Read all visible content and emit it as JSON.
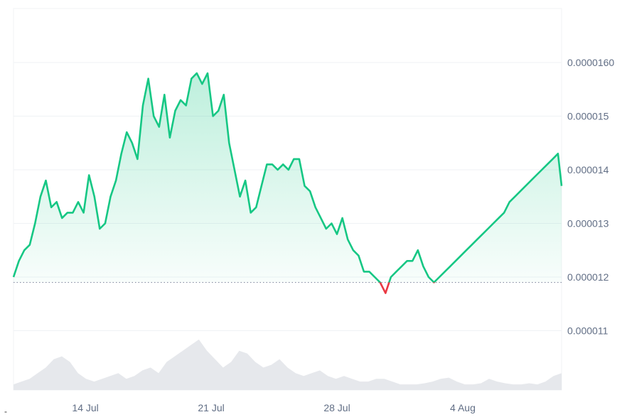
{
  "chart_data": {
    "type": "area",
    "title": "",
    "xlabel": "",
    "ylabel": "",
    "baseline": 1.19e-05,
    "ylim": [
      1.05e-05,
      1.7e-05
    ],
    "y_ticks": [
      {
        "value": 1.6e-05,
        "label": "0.0000160"
      },
      {
        "value": 1.5e-05,
        "label": "0.000015"
      },
      {
        "value": 1.4e-05,
        "label": "0.000014"
      },
      {
        "value": 1.3e-05,
        "label": "0.000013"
      },
      {
        "value": 1.2e-05,
        "label": "0.000012"
      },
      {
        "value": 1.1e-05,
        "label": "0.000011"
      }
    ],
    "x_ticks": [
      {
        "day": 14,
        "label": "14 Jul"
      },
      {
        "day": 21,
        "label": "21 Jul"
      },
      {
        "day": 28,
        "label": "28 Jul"
      },
      {
        "day": 35,
        "label": "4 Aug"
      }
    ],
    "grid": true,
    "colors": {
      "up": "#16c784",
      "down": "#ea3943",
      "volume": "#e6e8ec",
      "grid": "#eff2f5"
    },
    "series": [
      {
        "type": "line",
        "x": [
          10.0,
          10.3,
          10.6,
          10.9,
          11.2,
          11.5,
          11.8,
          12.1,
          12.4,
          12.7,
          13.0,
          13.3,
          13.6,
          13.9,
          14.2,
          14.5,
          14.8,
          15.1,
          15.4,
          15.7,
          16.0,
          16.3,
          16.6,
          16.9,
          17.2,
          17.5,
          17.8,
          18.1,
          18.4,
          18.7,
          19.0,
          19.3,
          19.6,
          19.9,
          20.2,
          20.5,
          20.8,
          21.1,
          21.4,
          21.7,
          22.0,
          22.3,
          22.6,
          22.9,
          23.2,
          23.5,
          23.8,
          24.1,
          24.4,
          24.7,
          25.0,
          25.3,
          25.6,
          25.9,
          26.2,
          26.5,
          26.8,
          27.1,
          27.4,
          27.7,
          28.0,
          28.3,
          28.6,
          28.9,
          29.2,
          29.5,
          29.8,
          30.1,
          30.4,
          30.7,
          31.0,
          31.3,
          31.6,
          31.9,
          32.2,
          32.5,
          32.8,
          33.1,
          33.4,
          33.7,
          34.0,
          34.3,
          34.6,
          34.9,
          35.2,
          35.5,
          35.8,
          36.1,
          36.4,
          36.7,
          37.0,
          37.3,
          37.6,
          37.9,
          38.2,
          38.5,
          38.8,
          39.1,
          39.4,
          39.7,
          40.0,
          40.3,
          40.5
        ],
        "values": [
          1.2e-05,
          1.23e-05,
          1.25e-05,
          1.26e-05,
          1.3e-05,
          1.35e-05,
          1.38e-05,
          1.33e-05,
          1.34e-05,
          1.31e-05,
          1.32e-05,
          1.32e-05,
          1.34e-05,
          1.32e-05,
          1.39e-05,
          1.35e-05,
          1.29e-05,
          1.3e-05,
          1.35e-05,
          1.38e-05,
          1.43e-05,
          1.47e-05,
          1.45e-05,
          1.42e-05,
          1.52e-05,
          1.57e-05,
          1.5e-05,
          1.48e-05,
          1.54e-05,
          1.46e-05,
          1.51e-05,
          1.53e-05,
          1.52e-05,
          1.57e-05,
          1.58e-05,
          1.56e-05,
          1.58e-05,
          1.5e-05,
          1.51e-05,
          1.54e-05,
          1.45e-05,
          1.4e-05,
          1.35e-05,
          1.38e-05,
          1.32e-05,
          1.33e-05,
          1.37e-05,
          1.41e-05,
          1.41e-05,
          1.4e-05,
          1.41e-05,
          1.4e-05,
          1.42e-05,
          1.42e-05,
          1.37e-05,
          1.36e-05,
          1.33e-05,
          1.31e-05,
          1.29e-05,
          1.3e-05,
          1.28e-05,
          1.31e-05,
          1.27e-05,
          1.25e-05,
          1.24e-05,
          1.21e-05,
          1.21e-05,
          1.2e-05,
          1.19e-05,
          1.17e-05,
          1.2e-05,
          1.21e-05,
          1.22e-05,
          1.23e-05,
          1.23e-05,
          1.25e-05,
          1.22e-05,
          1.2e-05,
          1.19e-05,
          1.2e-05,
          1.21e-05,
          1.22e-05,
          1.23e-05,
          1.24e-05,
          1.25e-05,
          1.26e-05,
          1.27e-05,
          1.28e-05,
          1.29e-05,
          1.3e-05,
          1.31e-05,
          1.32e-05,
          1.34e-05,
          1.35e-05,
          1.36e-05,
          1.37e-05,
          1.38e-05,
          1.39e-05,
          1.4e-05,
          1.41e-05,
          1.42e-05,
          1.43e-05,
          1.37e-05
        ]
      },
      {
        "type": "volume",
        "values": [
          0.1,
          0.15,
          0.2,
          0.3,
          0.4,
          0.55,
          0.6,
          0.5,
          0.3,
          0.2,
          0.15,
          0.2,
          0.25,
          0.3,
          0.2,
          0.25,
          0.35,
          0.4,
          0.3,
          0.5,
          0.6,
          0.7,
          0.8,
          0.9,
          0.7,
          0.55,
          0.4,
          0.5,
          0.7,
          0.65,
          0.5,
          0.4,
          0.45,
          0.55,
          0.4,
          0.3,
          0.25,
          0.3,
          0.35,
          0.25,
          0.2,
          0.25,
          0.2,
          0.15,
          0.15,
          0.2,
          0.2,
          0.15,
          0.1,
          0.1,
          0.1,
          0.12,
          0.15,
          0.2,
          0.22,
          0.15,
          0.1,
          0.1,
          0.12,
          0.2,
          0.15,
          0.12,
          0.1,
          0.1,
          0.12,
          0.1,
          0.15,
          0.25,
          0.3
        ]
      }
    ]
  },
  "footnote": "-"
}
